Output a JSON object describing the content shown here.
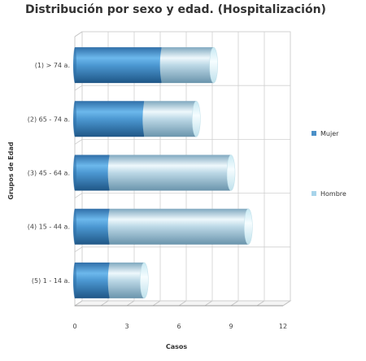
{
  "chart_data": {
    "type": "bar",
    "orientation": "horizontal",
    "stacked": true,
    "style": "3d-cylinder",
    "title": "Distribución por sexo y edad. (Hospitalización)",
    "xlabel": "Casos",
    "ylabel": "Grupos de Edad",
    "xlim": [
      0,
      12
    ],
    "xticks": [
      "0",
      "3",
      "6",
      "9",
      "12"
    ],
    "grid": true,
    "legend_position": "right",
    "categories": [
      "(1) > 74 a.",
      "(2) 65 - 74 a.",
      "(3) 45 - 64 a.",
      "(4) 15 - 44 a.",
      "(5) 1 - 14 a."
    ],
    "series": [
      {
        "name": "Mujer",
        "color": "#4a90c8",
        "values": [
          5,
          4,
          2,
          2,
          2
        ]
      },
      {
        "name": "Hombre",
        "color": "#a8d4ea",
        "values": [
          3,
          3,
          7,
          8,
          2
        ]
      }
    ]
  }
}
